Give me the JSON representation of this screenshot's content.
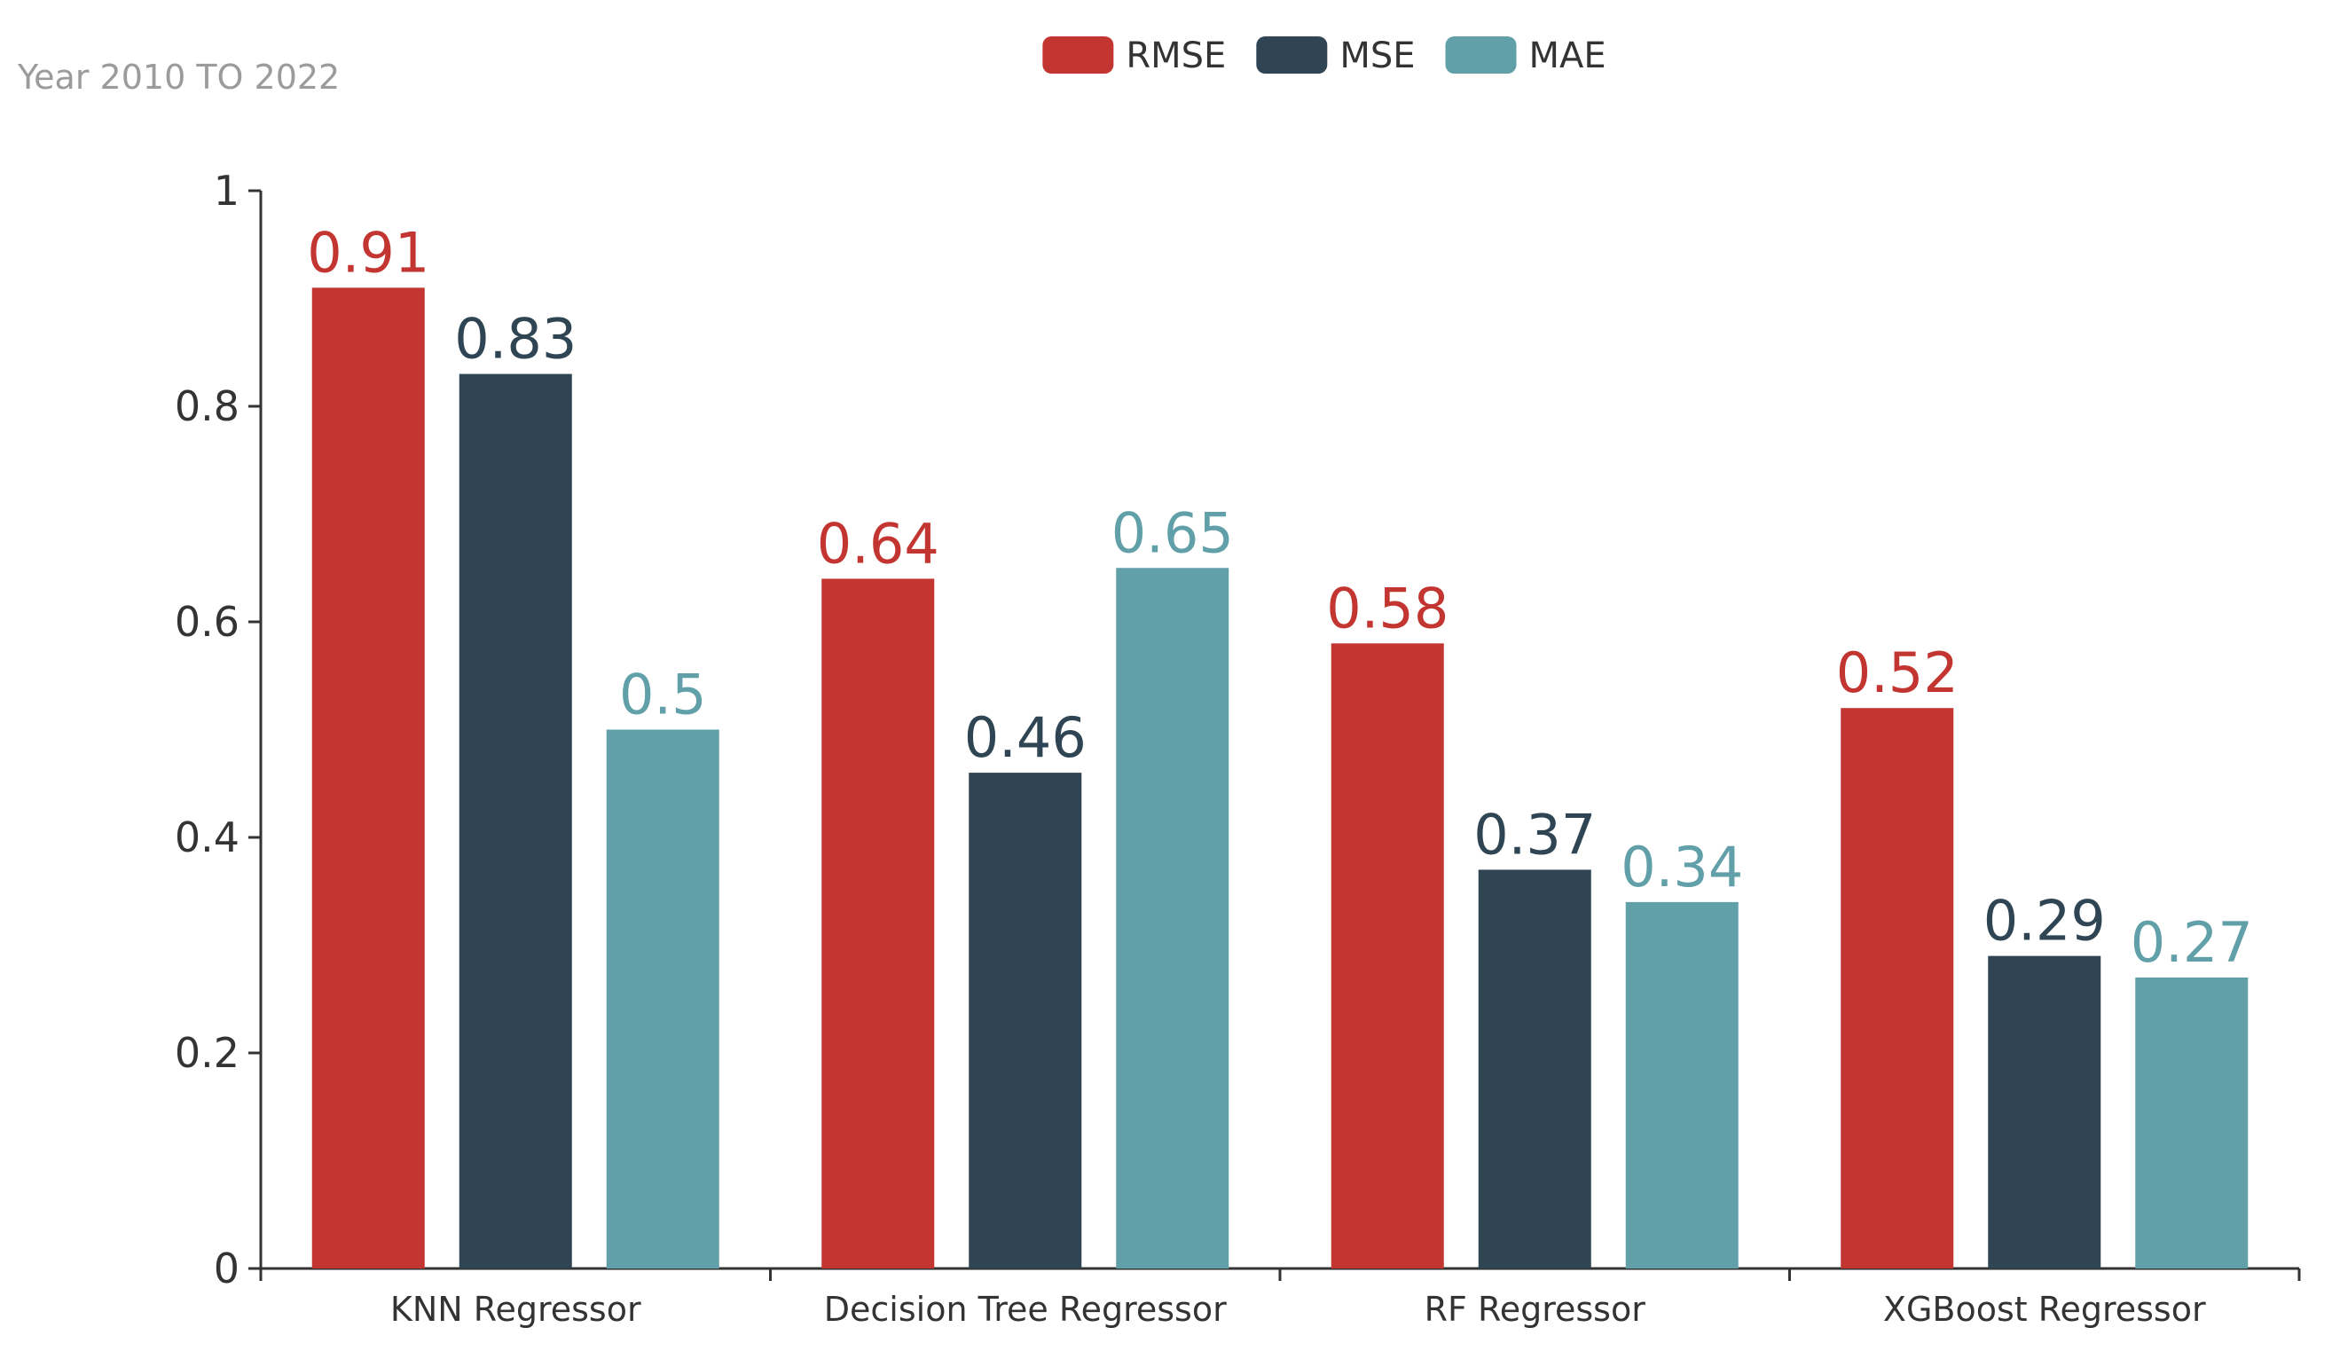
{
  "chart_data": {
    "type": "bar",
    "subtitle": "Year 2010 TO 2022",
    "categories": [
      "KNN Regressor",
      "Decision Tree Regressor",
      "RF Regressor",
      "XGBoost Regressor"
    ],
    "series": [
      {
        "name": "RMSE",
        "color": "#c23531",
        "values": [
          0.91,
          0.64,
          0.58,
          0.52
        ]
      },
      {
        "name": "MSE",
        "color": "#2f4554",
        "values": [
          0.83,
          0.46,
          0.37,
          0.29
        ]
      },
      {
        "name": "MAE",
        "color": "#61a0a8",
        "values": [
          0.5,
          0.65,
          0.34,
          0.27
        ]
      }
    ],
    "value_labels": [
      [
        "0.91",
        "0.64",
        "0.58",
        "0.52"
      ],
      [
        "0.83",
        "0.46",
        "0.37",
        "0.29"
      ],
      [
        "0.5",
        "0.65",
        "0.34",
        "0.27"
      ]
    ],
    "yticks": [
      0,
      0.2,
      0.4,
      0.6,
      0.8,
      1
    ],
    "ytick_labels": [
      "0",
      "0.2",
      "0.4",
      "0.6",
      "0.8",
      "1"
    ],
    "ylim": [
      0,
      1
    ],
    "xlabel": "",
    "ylabel": "",
    "legend_position": "top-center",
    "grid": false
  }
}
